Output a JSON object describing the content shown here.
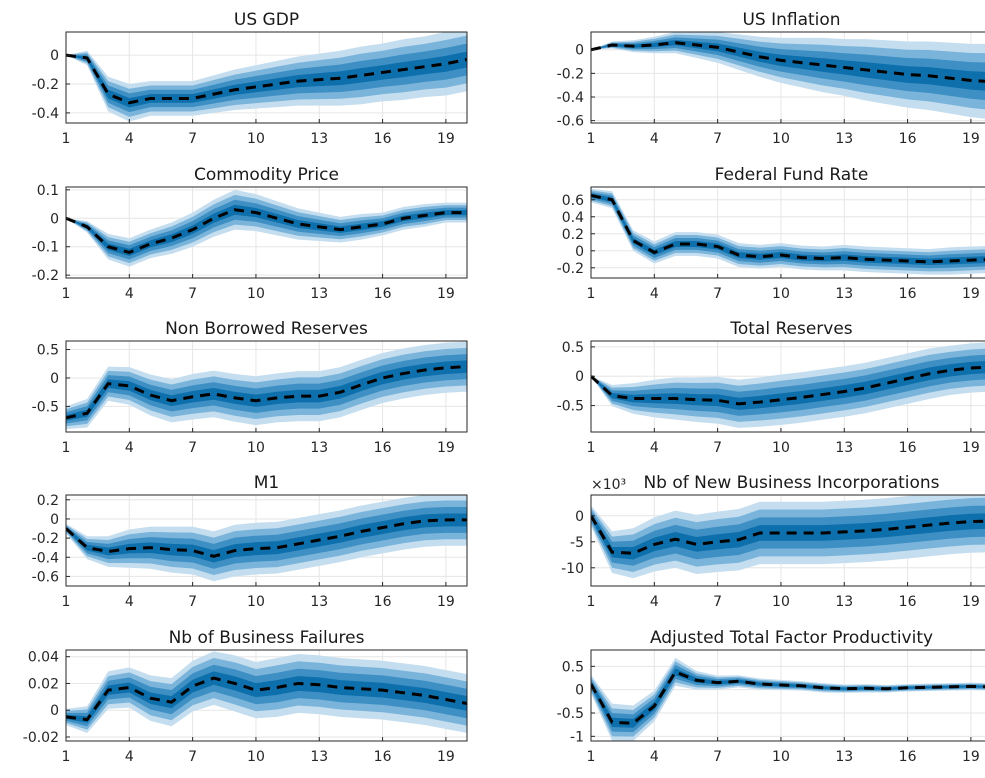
{
  "colors": {
    "band68": "#0d6fab",
    "band84": "#3e8fc3",
    "band90": "#7ab4da",
    "band95": "#c4ddef",
    "median": "#000000"
  },
  "chart_data": [
    {
      "type": "area",
      "title": "US GDP",
      "x": [
        1,
        2,
        3,
        4,
        5,
        6,
        7,
        8,
        9,
        10,
        11,
        12,
        13,
        14,
        15,
        16,
        17,
        18,
        19,
        20
      ],
      "xticks": [
        "1",
        "4",
        "7",
        "10",
        "13",
        "16",
        "19"
      ],
      "ylim": [
        -0.47,
        0.16
      ],
      "yticks": [
        "0",
        "-0.2",
        "-0.4"
      ],
      "yticks_values": [
        0,
        -0.2,
        -0.4
      ],
      "median": [
        0,
        -0.02,
        -0.27,
        -0.33,
        -0.3,
        -0.3,
        -0.3,
        -0.27,
        -0.24,
        -0.22,
        -0.2,
        -0.18,
        -0.17,
        -0.16,
        -0.14,
        -0.12,
        -0.1,
        -0.08,
        -0.06,
        -0.03
      ],
      "band": [
        0,
        0.05,
        0.12,
        0.13,
        0.12,
        0.12,
        0.12,
        0.13,
        0.14,
        0.15,
        0.16,
        0.17,
        0.18,
        0.19,
        0.2,
        0.2,
        0.21,
        0.21,
        0.22,
        0.22
      ]
    },
    {
      "type": "area",
      "title": "US Inflation",
      "x": [
        1,
        2,
        3,
        4,
        5,
        6,
        7,
        8,
        9,
        10,
        11,
        12,
        13,
        14,
        15,
        16,
        17,
        18,
        19,
        20
      ],
      "xticks": [
        "1",
        "4",
        "7",
        "10",
        "13",
        "16",
        "19"
      ],
      "ylim": [
        -0.62,
        0.15
      ],
      "yticks": [
        "0",
        "-0.2",
        "-0.4",
        "-0.6"
      ],
      "yticks_values": [
        0,
        -0.2,
        -0.4,
        -0.6
      ],
      "median": [
        0,
        0.04,
        0.03,
        0.04,
        0.06,
        0.04,
        0.02,
        -0.02,
        -0.06,
        -0.09,
        -0.11,
        -0.13,
        -0.15,
        -0.17,
        -0.19,
        -0.21,
        -0.22,
        -0.24,
        -0.26,
        -0.27
      ],
      "band": [
        0,
        0.03,
        0.05,
        0.07,
        0.09,
        0.11,
        0.13,
        0.15,
        0.17,
        0.19,
        0.21,
        0.23,
        0.24,
        0.26,
        0.27,
        0.28,
        0.29,
        0.3,
        0.31,
        0.32
      ]
    },
    {
      "type": "area",
      "title": "Commodity Price",
      "x": [
        1,
        2,
        3,
        4,
        5,
        6,
        7,
        8,
        9,
        10,
        11,
        12,
        13,
        14,
        15,
        16,
        17,
        18,
        19,
        20
      ],
      "xticks": [
        "1",
        "4",
        "7",
        "10",
        "13",
        "16",
        "19"
      ],
      "ylim": [
        -0.21,
        0.11
      ],
      "yticks": [
        "0.1",
        "0",
        "-0.1",
        "-0.2"
      ],
      "yticks_values": [
        0.1,
        0,
        -0.1,
        -0.2
      ],
      "median": [
        0,
        -0.03,
        -0.1,
        -0.12,
        -0.09,
        -0.07,
        -0.04,
        0.0,
        0.03,
        0.02,
        0.0,
        -0.02,
        -0.03,
        -0.04,
        -0.03,
        -0.02,
        0.0,
        0.01,
        0.02,
        0.02
      ],
      "band": [
        0,
        0.02,
        0.045,
        0.05,
        0.05,
        0.055,
        0.06,
        0.065,
        0.07,
        0.065,
        0.06,
        0.055,
        0.05,
        0.045,
        0.045,
        0.04,
        0.04,
        0.04,
        0.035,
        0.035
      ]
    },
    {
      "type": "area",
      "title": "Federal Fund Rate",
      "x": [
        1,
        2,
        3,
        4,
        5,
        6,
        7,
        8,
        9,
        10,
        11,
        12,
        13,
        14,
        15,
        16,
        17,
        18,
        19,
        20
      ],
      "xticks": [
        "1",
        "4",
        "7",
        "10",
        "13",
        "16",
        "19"
      ],
      "ylim": [
        -0.32,
        0.75
      ],
      "yticks": [
        "0.6",
        "0.4",
        "0.2",
        "0",
        "-0.2"
      ],
      "yticks_values": [
        0.6,
        0.4,
        0.2,
        0,
        -0.2
      ],
      "median": [
        0.65,
        0.6,
        0.12,
        -0.02,
        0.08,
        0.08,
        0.05,
        -0.05,
        -0.07,
        -0.05,
        -0.08,
        -0.09,
        -0.08,
        -0.1,
        -0.11,
        -0.12,
        -0.13,
        -0.12,
        -0.11,
        -0.1
      ],
      "band": [
        0.08,
        0.1,
        0.12,
        0.13,
        0.14,
        0.14,
        0.14,
        0.14,
        0.14,
        0.14,
        0.14,
        0.14,
        0.15,
        0.15,
        0.15,
        0.15,
        0.15,
        0.16,
        0.16,
        0.16
      ]
    },
    {
      "type": "area",
      "title": "Non Borrowed Reserves",
      "x": [
        1,
        2,
        3,
        4,
        5,
        6,
        7,
        8,
        9,
        10,
        11,
        12,
        13,
        14,
        15,
        16,
        17,
        18,
        19,
        20
      ],
      "xticks": [
        "1",
        "4",
        "7",
        "10",
        "13",
        "16",
        "19"
      ],
      "ylim": [
        -0.95,
        0.65
      ],
      "yticks": [
        "0.5",
        "0",
        "-0.5"
      ],
      "yticks_values": [
        0.5,
        0,
        -0.5
      ],
      "median": [
        -0.7,
        -0.62,
        -0.1,
        -0.14,
        -0.3,
        -0.4,
        -0.33,
        -0.28,
        -0.35,
        -0.4,
        -0.35,
        -0.32,
        -0.32,
        -0.25,
        -0.12,
        0.0,
        0.08,
        0.14,
        0.18,
        0.2
      ],
      "band": [
        0.2,
        0.25,
        0.3,
        0.33,
        0.36,
        0.38,
        0.4,
        0.41,
        0.42,
        0.43,
        0.43,
        0.44,
        0.44,
        0.44,
        0.44,
        0.44,
        0.44,
        0.44,
        0.44,
        0.44
      ]
    },
    {
      "type": "area",
      "title": "Total Reserves",
      "x": [
        1,
        2,
        3,
        4,
        5,
        6,
        7,
        8,
        9,
        10,
        11,
        12,
        13,
        14,
        15,
        16,
        17,
        18,
        19,
        20
      ],
      "xticks": [
        "1",
        "4",
        "7",
        "10",
        "13",
        "16",
        "19"
      ],
      "ylim": [
        -0.95,
        0.6
      ],
      "yticks": [
        "0.5",
        "0",
        "-0.5"
      ],
      "yticks_values": [
        0.5,
        0,
        -0.5
      ],
      "median": [
        0,
        -0.33,
        -0.38,
        -0.38,
        -0.38,
        -0.4,
        -0.41,
        -0.47,
        -0.44,
        -0.4,
        -0.36,
        -0.31,
        -0.26,
        -0.2,
        -0.12,
        -0.04,
        0.04,
        0.1,
        0.14,
        0.16
      ],
      "band": [
        0,
        0.18,
        0.26,
        0.32,
        0.36,
        0.38,
        0.4,
        0.41,
        0.42,
        0.43,
        0.43,
        0.43,
        0.43,
        0.43,
        0.43,
        0.43,
        0.43,
        0.42,
        0.42,
        0.42
      ]
    },
    {
      "type": "area",
      "title": "M1",
      "x": [
        1,
        2,
        3,
        4,
        5,
        6,
        7,
        8,
        9,
        10,
        11,
        12,
        13,
        14,
        15,
        16,
        17,
        18,
        19,
        20
      ],
      "xticks": [
        "1",
        "4",
        "7",
        "10",
        "13",
        "16",
        "19"
      ],
      "ylim": [
        -0.7,
        0.25
      ],
      "yticks": [
        "0.2",
        "0",
        "-0.2",
        "-0.4",
        "-0.6"
      ],
      "yticks_values": [
        0.2,
        0,
        -0.2,
        -0.4,
        -0.6
      ],
      "median": [
        -0.1,
        -0.3,
        -0.34,
        -0.31,
        -0.3,
        -0.32,
        -0.33,
        -0.39,
        -0.33,
        -0.31,
        -0.3,
        -0.26,
        -0.22,
        -0.18,
        -0.13,
        -0.09,
        -0.05,
        -0.02,
        -0.01,
        -0.01
      ],
      "band": [
        0.05,
        0.12,
        0.16,
        0.2,
        0.22,
        0.24,
        0.25,
        0.26,
        0.27,
        0.27,
        0.27,
        0.27,
        0.27,
        0.27,
        0.27,
        0.27,
        0.27,
        0.27,
        0.27,
        0.27
      ]
    },
    {
      "type": "area",
      "title": "Nb of New Business Incorporations",
      "yexponent": "×10³",
      "x": [
        1,
        2,
        3,
        4,
        5,
        6,
        7,
        8,
        9,
        10,
        11,
        12,
        13,
        14,
        15,
        16,
        17,
        18,
        19,
        20
      ],
      "xticks": [
        "1",
        "4",
        "7",
        "10",
        "13",
        "16",
        "19"
      ],
      "ylim": [
        -13.5,
        4
      ],
      "yticks": [
        "0",
        "-5",
        "-10"
      ],
      "yticks_values": [
        0,
        -5,
        -10
      ],
      "median": [
        0,
        -7,
        -7.2,
        -5.5,
        -4.5,
        -5.5,
        -5,
        -4.6,
        -3.3,
        -3.3,
        -3.3,
        -3.3,
        -3.1,
        -2.9,
        -2.6,
        -2.2,
        -1.8,
        -1.4,
        -1.1,
        -1
      ],
      "band": [
        2,
        4,
        4.8,
        5.2,
        5.5,
        5.7,
        5.8,
        5.9,
        6,
        6,
        6,
        6,
        6,
        6,
        6,
        6,
        6,
        6,
        6,
        6
      ]
    },
    {
      "type": "area",
      "title": "Nb of Business Failures",
      "x": [
        1,
        2,
        3,
        4,
        5,
        6,
        7,
        8,
        9,
        10,
        11,
        12,
        13,
        14,
        15,
        16,
        17,
        18,
        19,
        20
      ],
      "xticks": [
        "1",
        "4",
        "7",
        "10",
        "13",
        "16",
        "19"
      ],
      "ylim": [
        -0.023,
        0.045
      ],
      "yticks": [
        "0.04",
        "0.02",
        "0",
        "-0.02"
      ],
      "yticks_values": [
        0.04,
        0.02,
        0,
        -0.02
      ],
      "median": [
        -0.005,
        -0.007,
        0.015,
        0.017,
        0.009,
        0.006,
        0.018,
        0.024,
        0.02,
        0.015,
        0.017,
        0.02,
        0.019,
        0.017,
        0.016,
        0.015,
        0.013,
        0.011,
        0.008,
        0.005
      ],
      "band": [
        0.006,
        0.01,
        0.014,
        0.015,
        0.017,
        0.018,
        0.019,
        0.02,
        0.021,
        0.021,
        0.022,
        0.022,
        0.022,
        0.022,
        0.022,
        0.022,
        0.022,
        0.022,
        0.022,
        0.022
      ]
    },
    {
      "type": "area",
      "title": "Adjusted Total Factor Productivity",
      "x": [
        1,
        2,
        3,
        4,
        5,
        6,
        7,
        8,
        9,
        10,
        11,
        12,
        13,
        14,
        15,
        16,
        17,
        18,
        19,
        20
      ],
      "xticks": [
        "1",
        "4",
        "7",
        "10",
        "13",
        "16",
        "19"
      ],
      "ylim": [
        -1.1,
        0.85
      ],
      "yticks": [
        "0.5",
        "0",
        "-0.5",
        "-1"
      ],
      "yticks_values": [
        0.5,
        0,
        -0.5,
        -1
      ],
      "median": [
        0.12,
        -0.7,
        -0.72,
        -0.35,
        0.38,
        0.2,
        0.15,
        0.18,
        0.12,
        0.1,
        0.08,
        0.04,
        0.02,
        0.03,
        0.02,
        0.04,
        0.05,
        0.06,
        0.07,
        0.06
      ],
      "band": [
        0.2,
        0.4,
        0.38,
        0.33,
        0.3,
        0.2,
        0.15,
        0.13,
        0.12,
        0.11,
        0.1,
        0.1,
        0.09,
        0.09,
        0.08,
        0.08,
        0.08,
        0.08,
        0.08,
        0.08
      ]
    }
  ]
}
